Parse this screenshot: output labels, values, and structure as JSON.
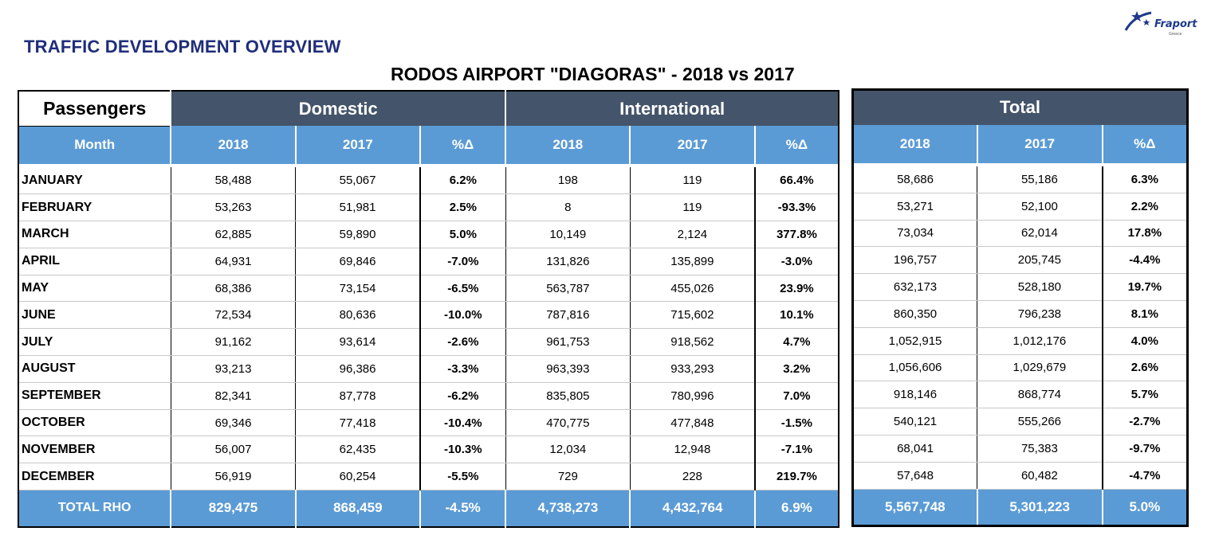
{
  "header": {
    "title": "TRAFFIC DEVELOPMENT OVERVIEW",
    "subtitle": "RODOS AIRPORT \"DIAGORAS\" - 2018 vs 2017",
    "logo_text": "Fraport",
    "logo_sub": "Greece"
  },
  "table": {
    "corner_label": "Passengers",
    "groups": [
      "Domestic",
      "International",
      "Total"
    ],
    "month_label": "Month",
    "columns": [
      "2018",
      "2017",
      "%Δ"
    ],
    "rows": [
      {
        "month": "JANUARY",
        "dom": [
          "58,488",
          "55,067",
          "6.2%"
        ],
        "intl": [
          "198",
          "119",
          "66.4%"
        ],
        "total": [
          "58,686",
          "55,186",
          "6.3%"
        ]
      },
      {
        "month": "FEBRUARY",
        "dom": [
          "53,263",
          "51,981",
          "2.5%"
        ],
        "intl": [
          "8",
          "119",
          "-93.3%"
        ],
        "total": [
          "53,271",
          "52,100",
          "2.2%"
        ]
      },
      {
        "month": "MARCH",
        "dom": [
          "62,885",
          "59,890",
          "5.0%"
        ],
        "intl": [
          "10,149",
          "2,124",
          "377.8%"
        ],
        "total": [
          "73,034",
          "62,014",
          "17.8%"
        ]
      },
      {
        "month": "APRIL",
        "dom": [
          "64,931",
          "69,846",
          "-7.0%"
        ],
        "intl": [
          "131,826",
          "135,899",
          "-3.0%"
        ],
        "total": [
          "196,757",
          "205,745",
          "-4.4%"
        ]
      },
      {
        "month": "MAY",
        "dom": [
          "68,386",
          "73,154",
          "-6.5%"
        ],
        "intl": [
          "563,787",
          "455,026",
          "23.9%"
        ],
        "total": [
          "632,173",
          "528,180",
          "19.7%"
        ]
      },
      {
        "month": "JUNE",
        "dom": [
          "72,534",
          "80,636",
          "-10.0%"
        ],
        "intl": [
          "787,816",
          "715,602",
          "10.1%"
        ],
        "total": [
          "860,350",
          "796,238",
          "8.1%"
        ]
      },
      {
        "month": "JULY",
        "dom": [
          "91,162",
          "93,614",
          "-2.6%"
        ],
        "intl": [
          "961,753",
          "918,562",
          "4.7%"
        ],
        "total": [
          "1,052,915",
          "1,012,176",
          "4.0%"
        ]
      },
      {
        "month": "AUGUST",
        "dom": [
          "93,213",
          "96,386",
          "-3.3%"
        ],
        "intl": [
          "963,393",
          "933,293",
          "3.2%"
        ],
        "total": [
          "1,056,606",
          "1,029,679",
          "2.6%"
        ]
      },
      {
        "month": "SEPTEMBER",
        "dom": [
          "82,341",
          "87,778",
          "-6.2%"
        ],
        "intl": [
          "835,805",
          "780,996",
          "7.0%"
        ],
        "total": [
          "918,146",
          "868,774",
          "5.7%"
        ]
      },
      {
        "month": "OCTOBER",
        "dom": [
          "69,346",
          "77,418",
          "-10.4%"
        ],
        "intl": [
          "470,775",
          "477,848",
          "-1.5%"
        ],
        "total": [
          "540,121",
          "555,266",
          "-2.7%"
        ]
      },
      {
        "month": "NOVEMBER",
        "dom": [
          "56,007",
          "62,435",
          "-10.3%"
        ],
        "intl": [
          "12,034",
          "12,948",
          "-7.1%"
        ],
        "total": [
          "68,041",
          "75,383",
          "-9.7%"
        ]
      },
      {
        "month": "DECEMBER",
        "dom": [
          "56,919",
          "60,254",
          "-5.5%"
        ],
        "intl": [
          "729",
          "228",
          "219.7%"
        ],
        "total": [
          "57,648",
          "60,482",
          "-4.7%"
        ]
      }
    ],
    "total_row": {
      "label": "TOTAL RHO",
      "dom": [
        "829,475",
        "868,459",
        "-4.5%"
      ],
      "intl": [
        "4,738,273",
        "4,432,764",
        "6.9%"
      ],
      "total": [
        "5,567,748",
        "5,301,223",
        "5.0%"
      ]
    }
  },
  "colors": {
    "title": "#1f2d7a",
    "group_header": "#44546a",
    "column_header": "#5b9bd5"
  }
}
